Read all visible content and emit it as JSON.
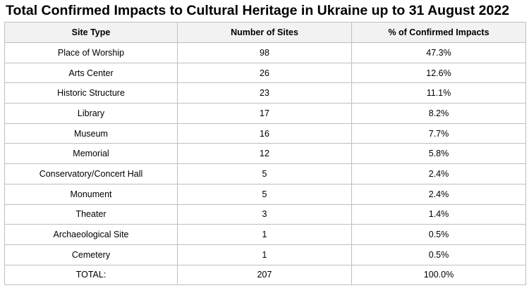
{
  "title": "Total Confirmed Impacts to Cultural Heritage in Ukraine up to 31 August 2022",
  "table": {
    "headers": [
      "Site Type",
      "Number of Sites",
      "% of Confirmed Impacts"
    ],
    "rows": [
      [
        "Place of Worship",
        "98",
        "47.3%"
      ],
      [
        "Arts Center",
        "26",
        "12.6%"
      ],
      [
        "Historic Structure",
        "23",
        "11.1%"
      ],
      [
        "Library",
        "17",
        "8.2%"
      ],
      [
        "Museum",
        "16",
        "7.7%"
      ],
      [
        "Memorial",
        "12",
        "5.8%"
      ],
      [
        "Conservatory/Concert Hall",
        "5",
        "2.4%"
      ],
      [
        "Monument",
        "5",
        "2.4%"
      ],
      [
        "Theater",
        "3",
        "1.4%"
      ],
      [
        "Archaeological Site",
        "1",
        "0.5%"
      ],
      [
        "Cemetery",
        "1",
        "0.5%"
      ],
      [
        "TOTAL:",
        "207",
        "100.0%"
      ]
    ]
  }
}
